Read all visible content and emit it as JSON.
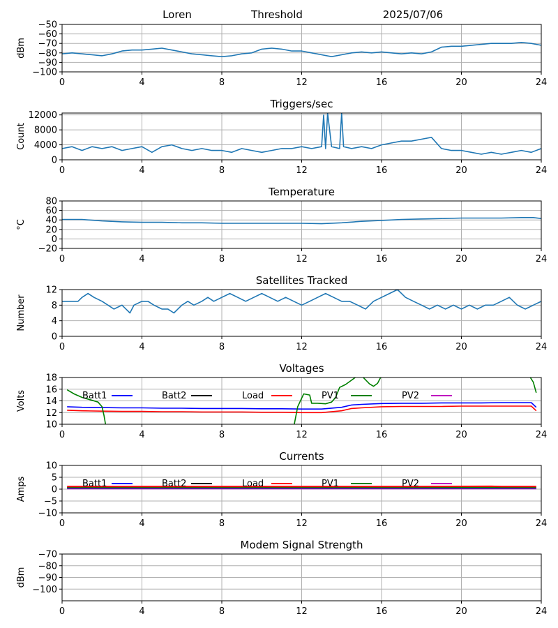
{
  "header": {
    "station": "Loren",
    "product": "Threshold",
    "date": "2025/07/06"
  },
  "colors": {
    "series": "#1f77b4",
    "batt1": "#0000ff",
    "batt2": "#000000",
    "load": "#ff0000",
    "pv1": "#008000",
    "pv2": "#bf00bf",
    "grid": "#b0b0b0"
  },
  "chart_data": [
    {
      "id": "threshold",
      "type": "line",
      "title": "",
      "ylabel": "dBm",
      "xlim": [
        0,
        24
      ],
      "ylim": [
        -100,
        -50
      ],
      "xticks": [
        0,
        4,
        8,
        12,
        16,
        20,
        24
      ],
      "yticks": [
        -100,
        -90,
        -80,
        -70,
        -60,
        -50
      ],
      "grid": true,
      "series": [
        {
          "color": "#1f77b4",
          "x": [
            0,
            0.5,
            1,
            1.5,
            2,
            2.5,
            3,
            3.5,
            4,
            4.5,
            5,
            5.5,
            6,
            6.5,
            7,
            7.5,
            8,
            8.5,
            9,
            9.5,
            10,
            10.5,
            11,
            11.5,
            12,
            12.5,
            13,
            13.5,
            14,
            14.5,
            15,
            15.5,
            16,
            16.5,
            17,
            17.5,
            18,
            18.5,
            19,
            19.5,
            20,
            20.5,
            21,
            21.5,
            22,
            22.5,
            23,
            23.5,
            24
          ],
          "y": [
            -81,
            -80,
            -81,
            -82,
            -83,
            -81,
            -78,
            -77,
            -77,
            -76,
            -75,
            -77,
            -79,
            -81,
            -82,
            -83,
            -84,
            -83,
            -81,
            -80,
            -76,
            -75,
            -76,
            -78,
            -78,
            -80,
            -82,
            -84,
            -82,
            -80,
            -79,
            -80,
            -79,
            -80,
            -81,
            -80,
            -81,
            -79,
            -74,
            -73,
            -73,
            -72,
            -71,
            -70,
            -70,
            -70,
            -69,
            -70,
            -72
          ]
        }
      ]
    },
    {
      "id": "triggers",
      "type": "line",
      "title": "Triggers/sec",
      "ylabel": "Count",
      "xlim": [
        0,
        24
      ],
      "ylim": [
        0,
        12500
      ],
      "xticks": [
        0,
        4,
        8,
        12,
        16,
        20,
        24
      ],
      "yticks": [
        0,
        4000,
        8000,
        12000
      ],
      "grid": true,
      "series": [
        {
          "color": "#1f77b4",
          "x": [
            0,
            0.5,
            1,
            1.5,
            2,
            2.5,
            3,
            3.5,
            4,
            4.5,
            5,
            5.5,
            6,
            6.5,
            7,
            7.5,
            8,
            8.5,
            9,
            9.5,
            10,
            10.5,
            11,
            11.5,
            12,
            12.5,
            13,
            13.1,
            13.2,
            13.3,
            13.5,
            13.9,
            14,
            14.1,
            14.5,
            15,
            15.5,
            16,
            16.5,
            17,
            17.5,
            18,
            18.5,
            19,
            19.5,
            20,
            20.5,
            21,
            21.5,
            22,
            22.5,
            23,
            23.5,
            24
          ],
          "y": [
            3000,
            3500,
            2500,
            3500,
            3000,
            3500,
            2500,
            3000,
            3500,
            2000,
            3500,
            4000,
            3000,
            2500,
            3000,
            2500,
            2500,
            2000,
            3000,
            2500,
            2000,
            2500,
            3000,
            3000,
            3500,
            3000,
            3500,
            12000,
            3000,
            12500,
            3500,
            3000,
            12500,
            3500,
            3000,
            3500,
            3000,
            4000,
            4500,
            5000,
            5000,
            5500,
            6000,
            3000,
            2500,
            2500,
            2000,
            1500,
            2000,
            1500,
            2000,
            2500,
            2000,
            3000
          ]
        }
      ]
    },
    {
      "id": "temperature",
      "type": "line",
      "title": "Temperature",
      "ylabel": "°C",
      "xlim": [
        0,
        24
      ],
      "ylim": [
        -20,
        80
      ],
      "xticks": [
        0,
        4,
        8,
        12,
        16,
        20,
        24
      ],
      "yticks": [
        -20,
        0,
        20,
        40,
        60,
        80
      ],
      "grid": true,
      "series": [
        {
          "color": "#1f77b4",
          "x": [
            0,
            1,
            2,
            3,
            4,
            5,
            6,
            7,
            8,
            9,
            10,
            11,
            12,
            13,
            14,
            15,
            16,
            17,
            18,
            19,
            20,
            21,
            22,
            23,
            23.6,
            24
          ],
          "y": [
            41,
            41,
            38,
            36,
            35,
            35,
            34,
            34,
            33,
            33,
            33,
            33,
            33,
            32,
            34,
            37,
            39,
            41,
            42,
            43,
            44,
            44,
            44,
            45,
            45,
            43
          ]
        }
      ]
    },
    {
      "id": "satellites",
      "type": "line",
      "title": "Satellites Tracked",
      "ylabel": "Number",
      "xlim": [
        0,
        24
      ],
      "ylim": [
        0,
        12
      ],
      "xticks": [
        0,
        4,
        8,
        12,
        16,
        20,
        24
      ],
      "yticks": [
        0,
        4,
        8,
        12
      ],
      "grid": true,
      "series": [
        {
          "color": "#1f77b4",
          "x": [
            0,
            0.8,
            1,
            1.3,
            1.6,
            2,
            2.3,
            2.6,
            3,
            3.2,
            3.4,
            3.6,
            4,
            4.3,
            4.6,
            5,
            5.3,
            5.6,
            6,
            6.3,
            6.6,
            7,
            7.3,
            7.6,
            8,
            8.4,
            8.8,
            9.2,
            9.6,
            10,
            10.4,
            10.8,
            11.2,
            11.6,
            12,
            12.4,
            12.8,
            13.2,
            13.6,
            14,
            14.4,
            14.8,
            15.2,
            15.6,
            16,
            16.4,
            16.8,
            17.2,
            17.6,
            18,
            18.4,
            18.8,
            19.2,
            19.6,
            20,
            20.4,
            20.8,
            21.2,
            21.6,
            22,
            22.4,
            22.8,
            23.2,
            23.6,
            24
          ],
          "y": [
            9,
            9,
            10,
            11,
            10,
            9,
            8,
            7,
            8,
            7,
            6,
            8,
            9,
            9,
            8,
            7,
            7,
            6,
            8,
            9,
            8,
            9,
            10,
            9,
            10,
            11,
            10,
            9,
            10,
            11,
            10,
            9,
            10,
            9,
            8,
            9,
            10,
            11,
            10,
            9,
            9,
            8,
            7,
            9,
            10,
            11,
            12,
            10,
            9,
            8,
            7,
            8,
            7,
            8,
            7,
            8,
            7,
            8,
            8,
            9,
            10,
            8,
            7,
            8,
            9
          ]
        }
      ]
    },
    {
      "id": "voltages",
      "type": "line",
      "title": "Voltages",
      "ylabel": "Volts",
      "xlim": [
        0,
        24
      ],
      "ylim": [
        10,
        18
      ],
      "xticks": [
        0,
        4,
        8,
        12,
        16,
        20,
        24
      ],
      "yticks": [
        10,
        12,
        14,
        16,
        18
      ],
      "grid": true,
      "legend": [
        "Batt1",
        "Batt2",
        "Load",
        "PV1",
        "PV2"
      ],
      "series": [
        {
          "name": "Batt1",
          "color": "#0000ff",
          "x": [
            0.25,
            1,
            2,
            3,
            4,
            5,
            6,
            7,
            8,
            9,
            10,
            11,
            12,
            13,
            14,
            14.5,
            15,
            16,
            17,
            18,
            19,
            20,
            21,
            22,
            23,
            23.5,
            23.75
          ],
          "y": [
            13.0,
            12.9,
            12.85,
            12.8,
            12.8,
            12.75,
            12.75,
            12.7,
            12.7,
            12.7,
            12.65,
            12.65,
            12.6,
            12.6,
            12.9,
            13.3,
            13.4,
            13.55,
            13.6,
            13.6,
            13.65,
            13.65,
            13.65,
            13.7,
            13.7,
            13.7,
            12.9
          ]
        },
        {
          "name": "Load",
          "color": "#ff0000",
          "x": [
            0.25,
            1,
            2,
            3,
            4,
            5,
            6,
            7,
            8,
            9,
            10,
            11,
            12,
            13,
            14,
            14.5,
            15,
            16,
            17,
            18,
            19,
            20,
            21,
            22,
            23,
            23.5,
            23.75
          ],
          "y": [
            12.4,
            12.3,
            12.25,
            12.2,
            12.2,
            12.15,
            12.15,
            12.1,
            12.1,
            12.1,
            12.05,
            12.05,
            12.0,
            12.0,
            12.3,
            12.7,
            12.8,
            13.0,
            13.05,
            13.05,
            13.05,
            13.1,
            13.1,
            13.1,
            13.1,
            13.1,
            12.3
          ]
        },
        {
          "name": "PV1",
          "color": "#008000",
          "x": [
            0.25,
            0.6,
            1,
            1.4,
            1.8,
            2.0,
            2.1,
            2.2
          ],
          "y": [
            15.9,
            15.2,
            14.6,
            14.2,
            13.8,
            13.0,
            11.5,
            9.5
          ]
        },
        {
          "name": "PV1",
          "color": "#008000",
          "x": [
            11.6,
            11.8,
            12.1,
            12.4,
            12.5,
            12.8,
            13.2,
            13.5,
            13.7,
            13.9,
            14.2,
            14.4,
            14.8,
            15.0,
            15.4,
            15.6,
            15.8,
            16.0
          ],
          "y": [
            9.5,
            13.0,
            15.2,
            15.0,
            13.6,
            13.6,
            13.5,
            13.8,
            14.6,
            16.3,
            16.8,
            17.3,
            18.3,
            18.3,
            16.9,
            16.5,
            17.0,
            18.3
          ]
        },
        {
          "name": "PV1",
          "color": "#008000",
          "x": [
            23.4,
            23.6,
            23.75
          ],
          "y": [
            18.3,
            17.2,
            15.4
          ]
        }
      ]
    },
    {
      "id": "currents",
      "type": "line",
      "title": "Currents",
      "ylabel": "Amps",
      "xlim": [
        0,
        24
      ],
      "ylim": [
        -10,
        10
      ],
      "xticks": [
        0,
        4,
        8,
        12,
        16,
        20,
        24
      ],
      "yticks": [
        -10,
        -5,
        0,
        5,
        10
      ],
      "grid": true,
      "legend": [
        "Batt1",
        "Batt2",
        "Load",
        "PV1",
        "PV2"
      ],
      "series": [
        {
          "name": "PV2",
          "color": "#bf00bf",
          "x": [
            0.25,
            23.75
          ],
          "y": [
            0.2,
            0.2
          ]
        },
        {
          "name": "Batt1",
          "color": "#0000ff",
          "x": [
            0.25,
            23.75
          ],
          "y": [
            0.5,
            0.5
          ]
        },
        {
          "name": "PV1",
          "color": "#008000",
          "x": [
            0.25,
            23.75
          ],
          "y": [
            0.7,
            0.7
          ]
        },
        {
          "name": "Load",
          "color": "#ff0000",
          "x": [
            0.25,
            6,
            12,
            18,
            21.5,
            22,
            23.75
          ],
          "y": [
            1.1,
            1.1,
            1.1,
            1.1,
            1.2,
            1.1,
            1.1
          ]
        }
      ]
    },
    {
      "id": "modem",
      "type": "line",
      "title": "Modem Signal Strength",
      "ylabel": "dBm",
      "xlim": [
        0,
        24
      ],
      "ylim": [
        -110,
        -70
      ],
      "xticks": [
        0,
        4,
        8,
        12,
        16,
        20,
        24
      ],
      "yticks": [
        -100,
        -90,
        -80,
        -70
      ],
      "grid": true,
      "series": []
    }
  ]
}
